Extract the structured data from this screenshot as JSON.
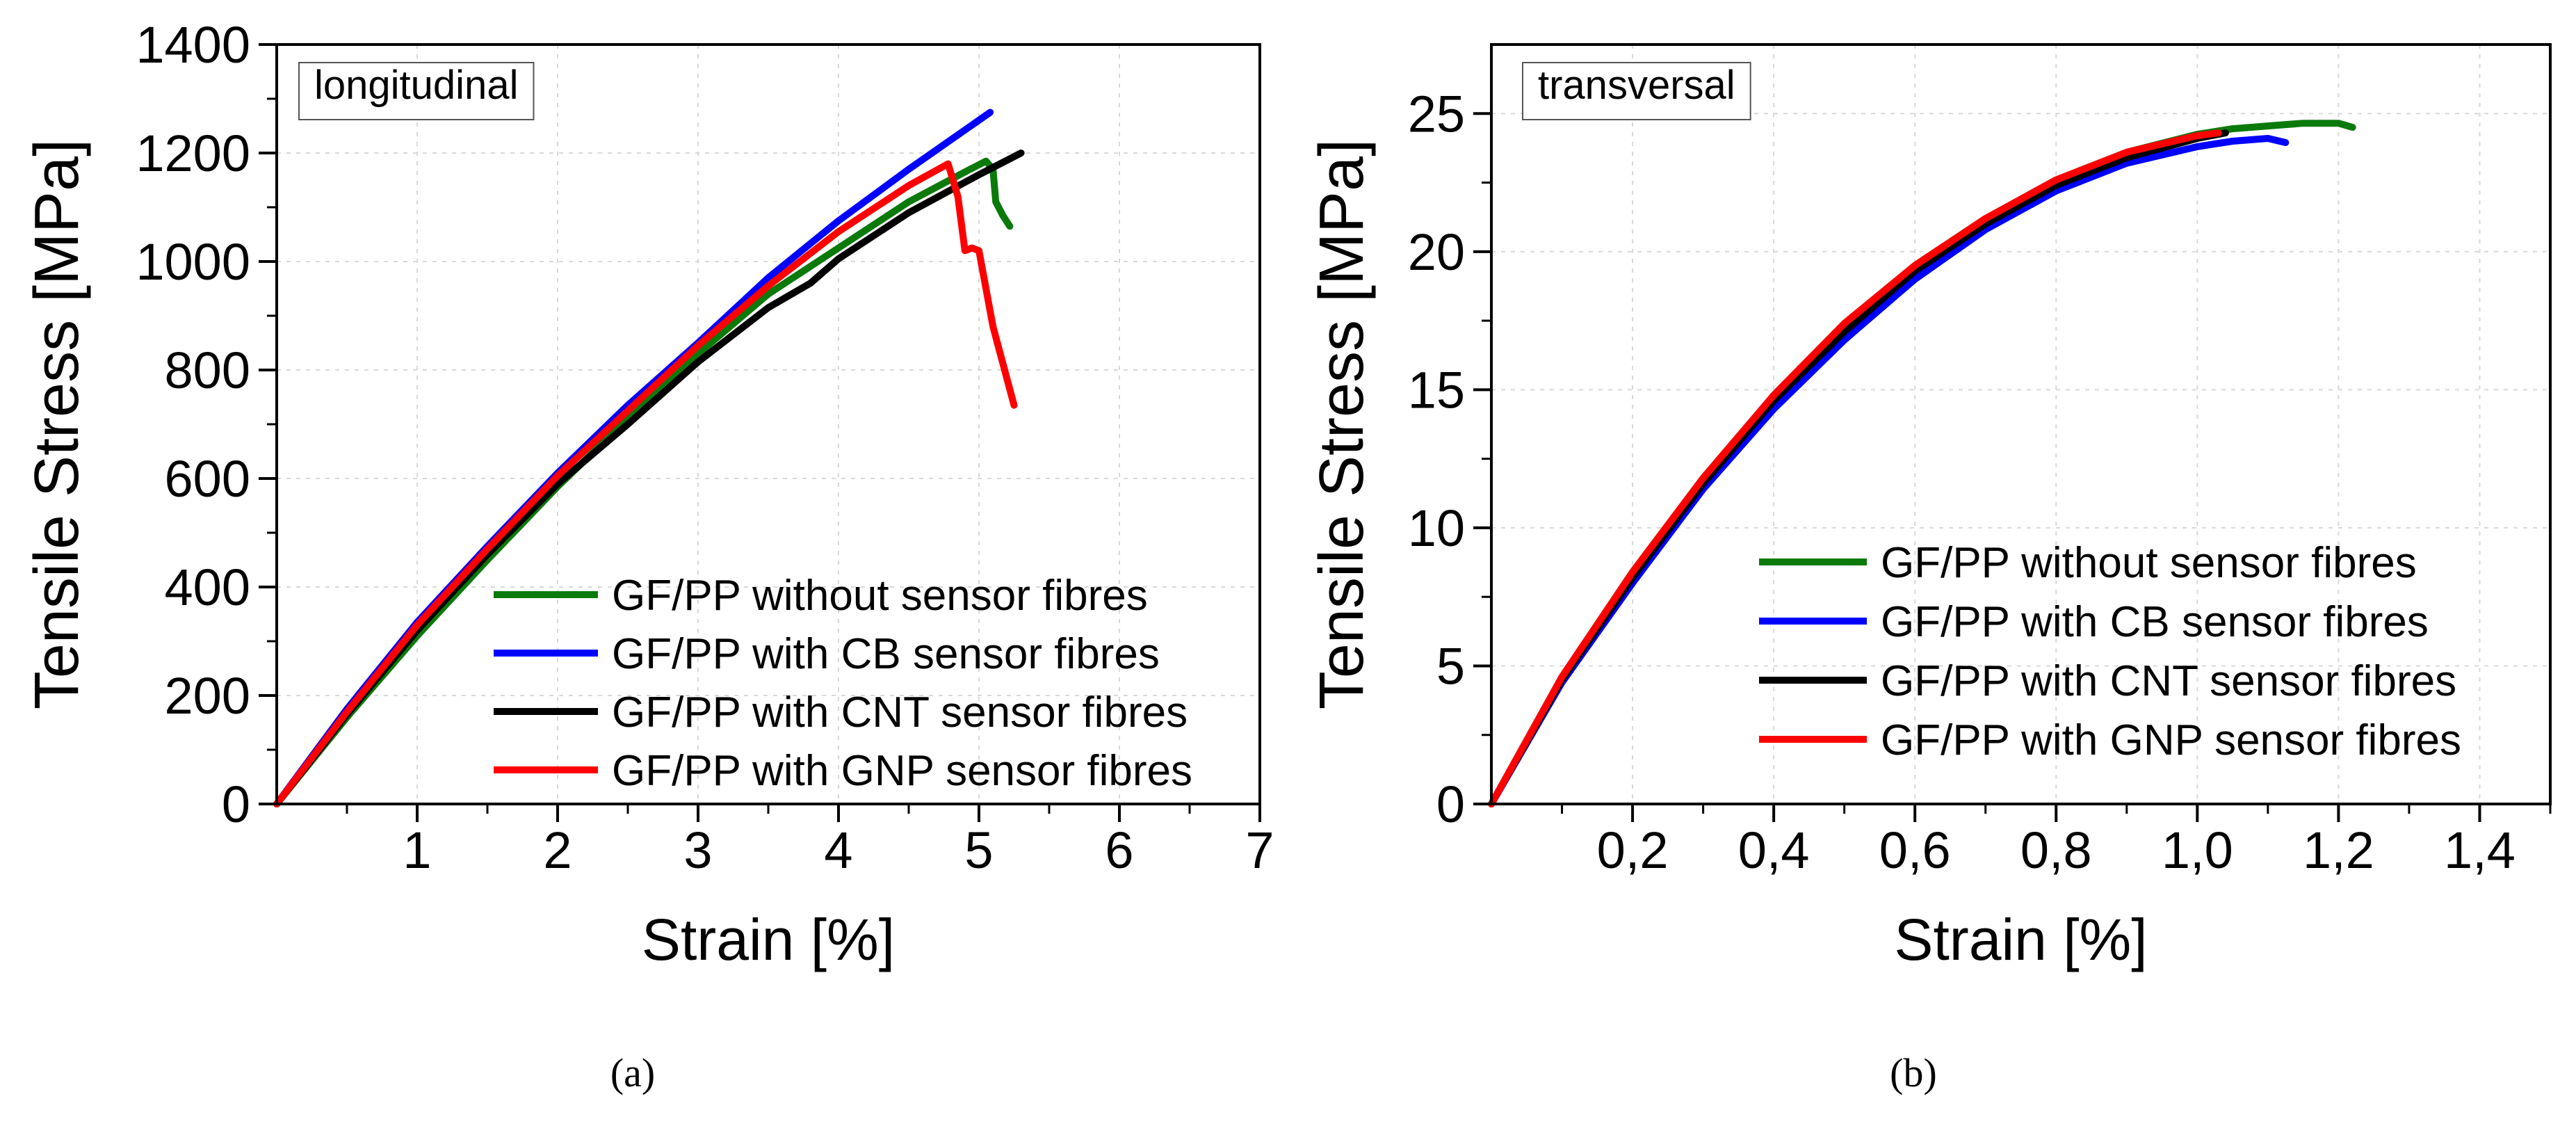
{
  "figure": {
    "caption_a": "(a)",
    "caption_b": "(b)"
  },
  "colors": {
    "green": "#0b7a0b",
    "blue": "#0000ff",
    "black": "#000000",
    "red": "#ff0000",
    "grid": "#d8d8d8",
    "axis": "#000000"
  },
  "chart_data": [
    {
      "id": "a",
      "type": "line",
      "title": "longitudinal",
      "xlabel": "Strain [%]",
      "ylabel": "Tensile Stress [MPa]",
      "xlim": [
        0,
        7
      ],
      "ylim": [
        0,
        1400
      ],
      "xticks": [
        1,
        2,
        3,
        4,
        5,
        6,
        7
      ],
      "xtick_labels": [
        "1",
        "2",
        "3",
        "4",
        "5",
        "6",
        "7"
      ],
      "yticks": [
        0,
        200,
        400,
        600,
        800,
        1000,
        1200,
        1400
      ],
      "ytick_labels": [
        "0",
        "200",
        "400",
        "600",
        "800",
        "1000",
        "1200",
        "1400"
      ],
      "grid": true,
      "legend_position": "bottom-right",
      "series": [
        {
          "name": "GF/PP without sensor fibres",
          "color": "#0b7a0b",
          "x": [
            0,
            0.5,
            1.0,
            1.5,
            2.0,
            2.5,
            3.0,
            3.5,
            4.0,
            4.5,
            4.9,
            5.05,
            5.1,
            5.12,
            5.17,
            5.22
          ],
          "y": [
            0,
            160,
            310,
            450,
            585,
            710,
            830,
            940,
            1025,
            1110,
            1165,
            1185,
            1170,
            1110,
            1085,
            1065
          ]
        },
        {
          "name": "GF/PP with CB sensor fibres",
          "color": "#0000ff",
          "x": [
            0,
            0.5,
            1.0,
            1.5,
            2.0,
            2.5,
            3.0,
            3.5,
            4.0,
            4.5,
            5.08
          ],
          "y": [
            0,
            175,
            335,
            475,
            610,
            735,
            850,
            970,
            1075,
            1170,
            1275
          ]
        },
        {
          "name": "GF/PP with CNT sensor fibres",
          "color": "#000000",
          "x": [
            0,
            0.5,
            1.0,
            1.5,
            2.0,
            2.5,
            3.0,
            3.5,
            3.8,
            4.0,
            4.5,
            5.0,
            5.3
          ],
          "y": [
            0,
            165,
            320,
            460,
            590,
            700,
            815,
            915,
            960,
            1005,
            1090,
            1160,
            1200
          ]
        },
        {
          "name": "GF/PP with GNP sensor fibres",
          "color": "#ff0000",
          "x": [
            0,
            0.5,
            1.0,
            1.5,
            2.0,
            2.5,
            3.0,
            3.5,
            4.0,
            4.5,
            4.78,
            4.85,
            4.9,
            4.95,
            5.0,
            5.1,
            5.25
          ],
          "y": [
            0,
            170,
            330,
            470,
            605,
            725,
            845,
            955,
            1055,
            1140,
            1180,
            1120,
            1020,
            1025,
            1020,
            880,
            735
          ]
        }
      ]
    },
    {
      "id": "b",
      "type": "line",
      "title": "transversal",
      "xlabel": "Strain [%]",
      "ylabel": "Tensile Stress [MPa]",
      "xlim": [
        0,
        1.5
      ],
      "ylim": [
        0,
        27.5
      ],
      "xticks": [
        0.2,
        0.4,
        0.6,
        0.8,
        1.0,
        1.2,
        1.4
      ],
      "xtick_labels": [
        "0,2",
        "0,4",
        "0,6",
        "0,8",
        "1,0",
        "1,2",
        "1,4"
      ],
      "yticks": [
        0,
        5,
        10,
        15,
        20,
        25
      ],
      "ytick_labels": [
        "0",
        "5",
        "10",
        "15",
        "20",
        "25"
      ],
      "grid": true,
      "legend_position": "bottom-right",
      "series": [
        {
          "name": "GF/PP without sensor fibres",
          "color": "#0b7a0b",
          "x": [
            0,
            0.1,
            0.2,
            0.3,
            0.4,
            0.5,
            0.6,
            0.7,
            0.8,
            0.9,
            1.0,
            1.05,
            1.1,
            1.15,
            1.2,
            1.22
          ],
          "y": [
            0,
            4.6,
            8.4,
            11.8,
            14.8,
            17.4,
            19.5,
            21.2,
            22.6,
            23.6,
            24.25,
            24.45,
            24.55,
            24.65,
            24.65,
            24.5
          ]
        },
        {
          "name": "GF/PP with CB sensor fibres",
          "color": "#0000ff",
          "x": [
            0,
            0.1,
            0.2,
            0.3,
            0.4,
            0.5,
            0.6,
            0.7,
            0.8,
            0.9,
            1.0,
            1.05,
            1.1,
            1.125
          ],
          "y": [
            0,
            4.4,
            8.0,
            11.4,
            14.3,
            16.8,
            19.0,
            20.8,
            22.2,
            23.2,
            23.8,
            24.0,
            24.1,
            23.95
          ]
        },
        {
          "name": "GF/PP with CNT sensor fibres",
          "color": "#000000",
          "x": [
            0,
            0.1,
            0.2,
            0.3,
            0.4,
            0.5,
            0.6,
            0.7,
            0.8,
            0.9,
            1.0,
            1.04
          ],
          "y": [
            0,
            4.5,
            8.2,
            11.6,
            14.6,
            17.1,
            19.3,
            21.0,
            22.4,
            23.4,
            24.1,
            24.3
          ]
        },
        {
          "name": "GF/PP with GNP sensor fibres",
          "color": "#ff0000",
          "x": [
            0,
            0.1,
            0.2,
            0.3,
            0.4,
            0.5,
            0.6,
            0.7,
            0.8,
            0.9,
            1.0,
            1.03
          ],
          "y": [
            0,
            4.6,
            8.4,
            11.8,
            14.8,
            17.4,
            19.5,
            21.2,
            22.6,
            23.6,
            24.2,
            24.3
          ]
        }
      ]
    }
  ]
}
